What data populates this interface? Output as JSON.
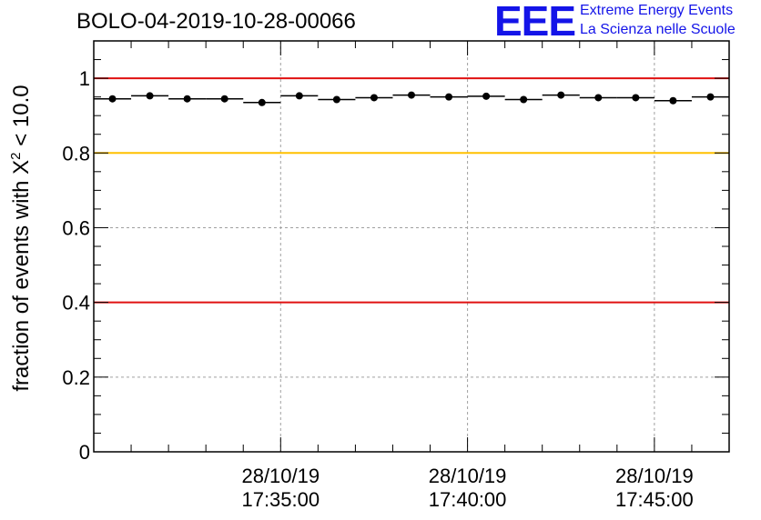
{
  "chart_data": {
    "type": "scatter",
    "title": "BOLO-04-2019-10-28-00066",
    "ylabel": {
      "prefix": "fraction of events with X",
      "sup": "2",
      "suffix": " < 10.0"
    },
    "xlabel": "",
    "ylim": [
      0,
      1.1
    ],
    "yticks": [
      "0",
      "0.2",
      "0.4",
      "0.6",
      "0.8",
      "1"
    ],
    "xlim_minutes": [
      0,
      17
    ],
    "xticks": [
      {
        "pos": 5,
        "date": "28/10/19",
        "time": "17:35:00"
      },
      {
        "pos": 10,
        "date": "28/10/19",
        "time": "17:40:00"
      },
      {
        "pos": 15,
        "date": "28/10/19",
        "time": "17:45:00"
      }
    ],
    "grid": true,
    "bin_width": 1,
    "points": [
      {
        "x": 0.5,
        "y": 0.945
      },
      {
        "x": 1.5,
        "y": 0.953
      },
      {
        "x": 2.5,
        "y": 0.945
      },
      {
        "x": 3.5,
        "y": 0.945
      },
      {
        "x": 4.5,
        "y": 0.935
      },
      {
        "x": 5.5,
        "y": 0.953
      },
      {
        "x": 6.5,
        "y": 0.943
      },
      {
        "x": 7.5,
        "y": 0.948
      },
      {
        "x": 8.5,
        "y": 0.955
      },
      {
        "x": 9.5,
        "y": 0.95
      },
      {
        "x": 10.5,
        "y": 0.952
      },
      {
        "x": 11.5,
        "y": 0.943
      },
      {
        "x": 12.5,
        "y": 0.955
      },
      {
        "x": 13.5,
        "y": 0.948
      },
      {
        "x": 14.5,
        "y": 0.948
      },
      {
        "x": 15.5,
        "y": 0.94
      },
      {
        "x": 16.5,
        "y": 0.95
      }
    ],
    "reference_lines": [
      {
        "y": 1.0,
        "color": "#e01010"
      },
      {
        "y": 0.8,
        "color": "#ffc000"
      },
      {
        "y": 0.4,
        "color": "#e01010"
      }
    ]
  },
  "logo": {
    "text": "EEE",
    "line1": "Extreme Energy Events",
    "line2": "La Scienza nelle Scuole",
    "color": "#1414e8"
  }
}
